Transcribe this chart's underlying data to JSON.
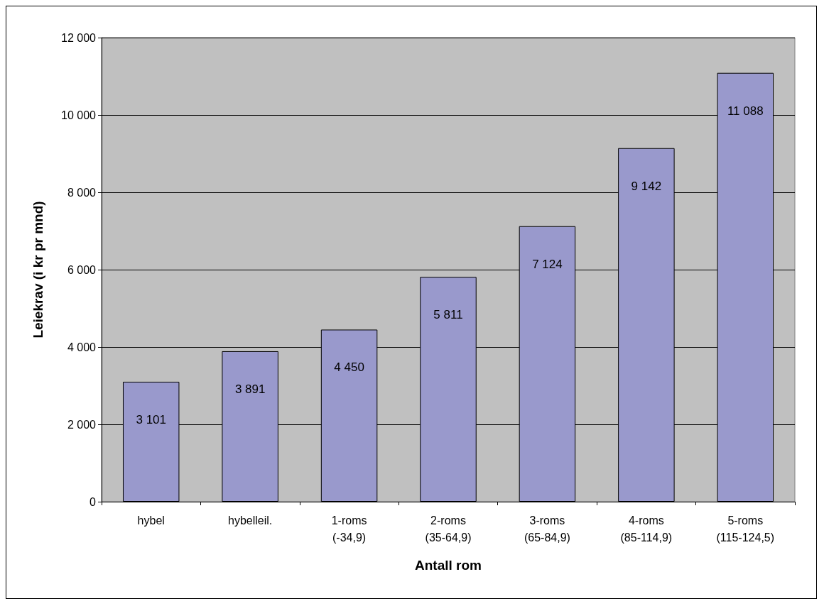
{
  "chart_data": {
    "type": "bar",
    "xlabel": "Antall rom",
    "ylabel": "Leiekrav (i kr pr mnd)",
    "categories": [
      "hybel",
      "hybelleil.",
      "1-roms\n(-34,9)",
      "2-roms\n(35-64,9)",
      "3-roms\n(65-84,9)",
      "4-roms\n(85-114,9)",
      "5-roms\n(115-124,5)"
    ],
    "values": [
      3101,
      3891,
      4450,
      5811,
      7124,
      9142,
      11088
    ],
    "value_labels": [
      "3 101",
      "3 891",
      "4 450",
      "5 811",
      "7 124",
      "9 142",
      "11 088"
    ],
    "color": "#9999cc",
    "ylim": [
      0,
      12000
    ],
    "yticks": [
      {
        "value": 0,
        "label": "0"
      },
      {
        "value": 2000,
        "label": "2 000"
      },
      {
        "value": 4000,
        "label": "4 000"
      },
      {
        "value": 6000,
        "label": "6 000"
      },
      {
        "value": 8000,
        "label": "8 000"
      },
      {
        "value": 10000,
        "label": "10 000"
      },
      {
        "value": 12000,
        "label": "12 000"
      }
    ],
    "grid": "y"
  }
}
